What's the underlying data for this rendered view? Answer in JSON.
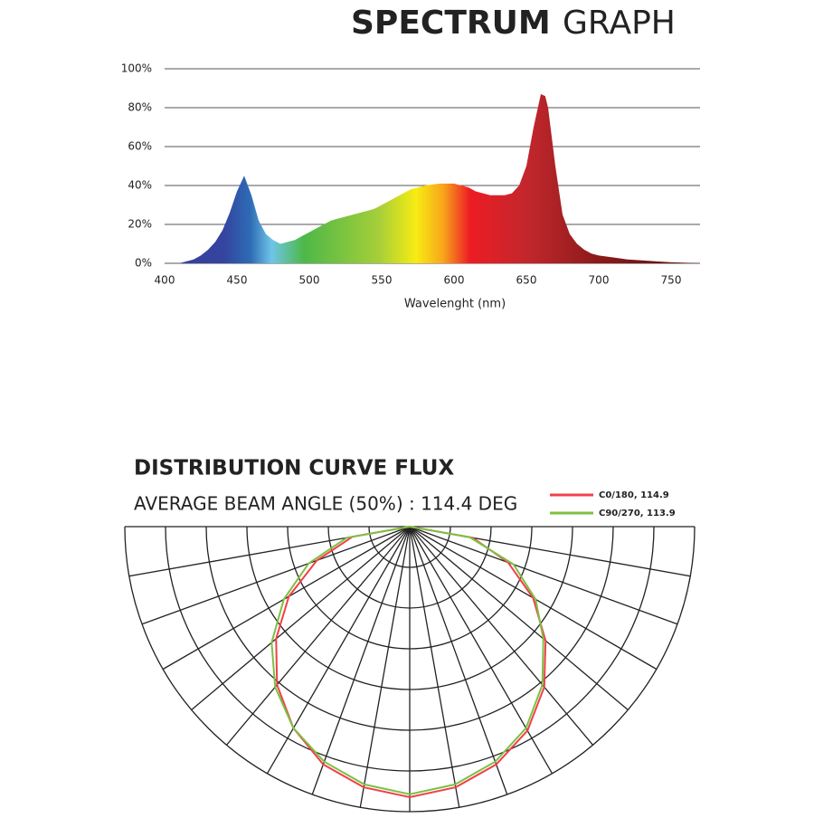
{
  "chart_data": [
    {
      "type": "area",
      "title": [
        "SPECTRUM",
        "GRAPH"
      ],
      "x_label": "Wavelenght (nm)",
      "x": [
        400,
        410,
        415,
        420,
        425,
        430,
        435,
        440,
        445,
        450,
        455,
        460,
        465,
        470,
        475,
        480,
        485,
        490,
        495,
        500,
        505,
        510,
        515,
        520,
        525,
        530,
        535,
        540,
        545,
        550,
        555,
        560,
        565,
        570,
        575,
        580,
        585,
        590,
        595,
        600,
        605,
        610,
        615,
        620,
        625,
        630,
        635,
        640,
        645,
        650,
        655,
        660,
        663,
        665,
        670,
        675,
        680,
        685,
        690,
        695,
        700,
        710,
        720,
        730,
        740,
        750,
        760,
        770
      ],
      "values": [
        0,
        0,
        1,
        2,
        4,
        7,
        11,
        17,
        26,
        37,
        45,
        35,
        22,
        15,
        12,
        10,
        11,
        12,
        14,
        16,
        18,
        20,
        22,
        23,
        24,
        25,
        26,
        27,
        28,
        30,
        32,
        34,
        36,
        38,
        39,
        40,
        40.5,
        41,
        41,
        41,
        40,
        39,
        37,
        36,
        35,
        35,
        35,
        36,
        40,
        50,
        70,
        87,
        86,
        80,
        50,
        25,
        15,
        10,
        7,
        5,
        4,
        3,
        2,
        1.5,
        1,
        0.5,
        0.3,
        0
      ],
      "xlim": [
        400,
        770
      ],
      "xticks": [
        400,
        450,
        500,
        550,
        600,
        650,
        700,
        750
      ],
      "ylim": [
        0,
        100
      ],
      "yticks": [
        {
          "value": 0,
          "label": "0%"
        },
        {
          "value": 20,
          "label": "20%"
        },
        {
          "value": 40,
          "label": "40%"
        },
        {
          "value": 60,
          "label": "60%"
        },
        {
          "value": 80,
          "label": "80%"
        },
        {
          "value": 100,
          "label": "100%"
        }
      ],
      "grid": true
    },
    {
      "type": "polar",
      "title": "DISTRIBUTION CURVE FLUX",
      "subtitle": "AVERAGE BEAM ANGLE  (50%) : 114.4 DEG",
      "angles": [
        -90,
        -80,
        -70,
        -60,
        -50,
        -40,
        -30,
        -20,
        -10,
        0,
        10,
        20,
        30,
        40,
        50,
        60,
        70,
        80,
        90
      ],
      "series": [
        {
          "name": "C0/180, 114.9",
          "color": "#f0404a",
          "values": [
            0,
            20,
            34,
            48,
            60,
            71,
            80,
            87,
            91,
            93,
            91,
            87,
            81,
            72,
            61,
            49,
            36,
            22,
            0
          ]
        },
        {
          "name": "C90/270, 113.9",
          "color": "#7cc142",
          "values": [
            0,
            22,
            37,
            50,
            62,
            72,
            80,
            86,
            90,
            92,
            90,
            86,
            80,
            71,
            60,
            50,
            38,
            21,
            0
          ]
        }
      ],
      "rlim": [
        0,
        98
      ],
      "rticks": [
        14,
        28,
        42,
        56,
        70,
        84,
        98
      ],
      "angle_ticks": [
        -90,
        -80,
        -70,
        -60,
        -50,
        -40,
        -30,
        -20,
        -10,
        0,
        10,
        20,
        30,
        40,
        50,
        60,
        70,
        80,
        90
      ]
    }
  ]
}
